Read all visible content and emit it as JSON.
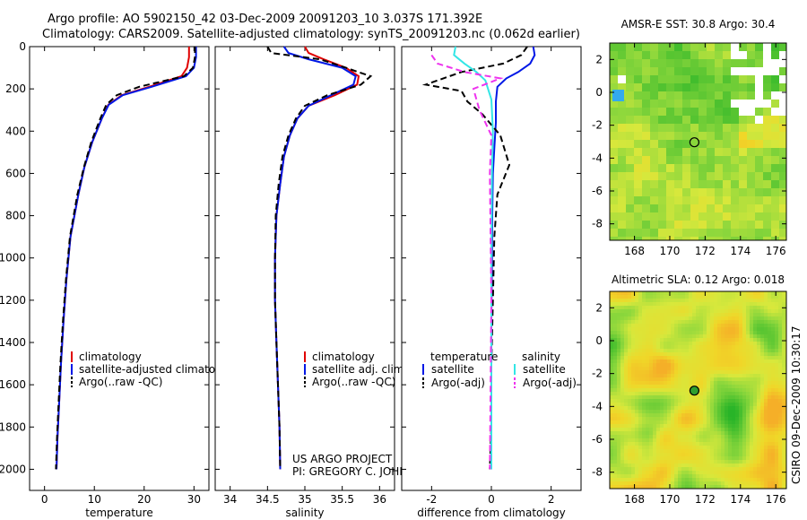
{
  "header": {
    "line1": "Argo profile: AO 5902150_42 03-Dec-2009 20091203_10 3.037S 171.392E",
    "line2": "Climatology: CARS2009. Satellite-adjusted climatology: synTS_20091203.nc (0.062d earlier)"
  },
  "side_label": "CSIRO 09-Dec-2009 10:30:17",
  "colors": {
    "red": "#e00000",
    "blue": "#0018e6",
    "black": "#000000",
    "cyan": "#33e6e6",
    "magenta": "#ee33ee",
    "circle_fill": "#2f9e2f"
  },
  "chart_data": [
    {
      "id": "temperature",
      "type": "line",
      "xlabel": "temperature",
      "ylabel": "",
      "xlim": [
        -3,
        33
      ],
      "ylim": [
        2100,
        0
      ],
      "xticks": [
        0,
        10,
        20,
        30
      ],
      "yticks": [
        0,
        200,
        400,
        600,
        800,
        1000,
        1200,
        1400,
        1600,
        1800,
        2000
      ],
      "series": [
        {
          "name": "climatology",
          "color": "#e00000",
          "dash": false,
          "x": [
            29.0,
            29.0,
            28.6,
            27.5,
            21.0,
            15.5,
            12.8,
            11.5,
            9.6,
            8.0,
            6.8,
            5.2,
            4.4,
            3.8,
            3.3,
            2.9,
            2.6,
            2.4
          ],
          "y": [
            0,
            50,
            100,
            140,
            190,
            230,
            275,
            340,
            450,
            570,
            700,
            900,
            1100,
            1300,
            1500,
            1700,
            1850,
            2000
          ]
        },
        {
          "name": "satellite-adjusted climatology",
          "color": "#0018e6",
          "dash": false,
          "x": [
            30.4,
            30.4,
            30.0,
            28.4,
            21.5,
            15.7,
            12.9,
            11.5,
            9.6,
            8.0,
            6.8,
            5.2,
            4.4,
            3.8,
            3.3,
            2.9,
            2.6,
            2.4
          ],
          "y": [
            0,
            50,
            100,
            140,
            190,
            230,
            275,
            340,
            450,
            570,
            700,
            900,
            1100,
            1300,
            1500,
            1700,
            1850,
            2000
          ]
        },
        {
          "name": "Argo(..raw -QC)",
          "color": "#000000",
          "dash": true,
          "x": [
            30.2,
            30.2,
            29.8,
            28.0,
            19.0,
            14.5,
            12.4,
            11.2,
            9.4,
            7.9,
            6.6,
            5.1,
            4.3,
            3.7,
            3.2,
            2.8,
            2.5,
            2.3
          ],
          "y": [
            0,
            50,
            100,
            140,
            190,
            230,
            275,
            340,
            450,
            570,
            700,
            900,
            1100,
            1300,
            1500,
            1700,
            1850,
            2000
          ]
        }
      ],
      "legend": [
        "climatology",
        "satellite-adjusted climatology",
        "Argo(..raw -QC)"
      ],
      "legend_position": "bottom-right"
    },
    {
      "id": "salinity",
      "type": "line",
      "xlabel": "salinity",
      "ylabel": "",
      "xlim": [
        33.8,
        36.2
      ],
      "ylim": [
        2100,
        0
      ],
      "xticks": [
        34,
        34.5,
        35,
        35.5,
        36
      ],
      "xticklabels": [
        "34",
        "34.5",
        "35",
        "35.5",
        "36"
      ],
      "yticks": [
        0,
        200,
        400,
        600,
        800,
        1000,
        1200,
        1400,
        1600,
        1800,
        2000
      ],
      "series": [
        {
          "name": "climatology",
          "color": "#e00000",
          "dash": false,
          "x": [
            35.0,
            35.05,
            35.25,
            35.55,
            35.72,
            35.7,
            35.4,
            35.05,
            34.9,
            34.8,
            34.72,
            34.67,
            34.62,
            34.6,
            34.6,
            34.62,
            34.64,
            34.66,
            34.67
          ],
          "y": [
            0,
            30,
            60,
            100,
            140,
            180,
            230,
            280,
            340,
            420,
            520,
            650,
            800,
            1000,
            1200,
            1400,
            1600,
            1800,
            2000
          ]
        },
        {
          "name": "satellite adj. clim.",
          "color": "#0018e6",
          "dash": false,
          "x": [
            34.72,
            34.78,
            35.05,
            35.5,
            35.68,
            35.65,
            35.35,
            35.05,
            34.9,
            34.8,
            34.72,
            34.67,
            34.62,
            34.6,
            34.6,
            34.62,
            34.64,
            34.66,
            34.67
          ],
          "y": [
            0,
            30,
            60,
            100,
            140,
            180,
            230,
            280,
            340,
            420,
            520,
            650,
            800,
            1000,
            1200,
            1400,
            1600,
            1800,
            2000
          ]
        },
        {
          "name": "Argo(..raw -QC)",
          "color": "#000000",
          "dash": true,
          "x": [
            34.5,
            34.55,
            35.2,
            35.55,
            35.88,
            35.75,
            35.3,
            35.0,
            34.88,
            34.78,
            34.7,
            34.65,
            34.61,
            34.6,
            34.6,
            34.62,
            34.64,
            34.66,
            34.67
          ],
          "y": [
            0,
            30,
            60,
            100,
            140,
            180,
            230,
            280,
            340,
            420,
            520,
            650,
            800,
            1000,
            1200,
            1400,
            1600,
            1800,
            2000
          ]
        }
      ],
      "legend": [
        "climatology",
        "satellite adj. clim.",
        "Argo(..raw -QC)"
      ],
      "legend_position": "bottom-right",
      "annotation": [
        "US ARGO PROJECT",
        "PI: GREGORY C. JOHNSON"
      ]
    },
    {
      "id": "difference",
      "type": "line",
      "xlabel": "difference from climatology",
      "ylabel": "",
      "xlim": [
        -3,
        3
      ],
      "ylim": [
        2100,
        0
      ],
      "xticks": [
        -2,
        0,
        2
      ],
      "yticks": [
        0,
        200,
        400,
        600,
        800,
        1000,
        1200,
        1400,
        1600,
        1800,
        2000
      ],
      "series": [
        {
          "name": "temperature satellite",
          "color": "#0018e6",
          "dash": false,
          "x": [
            1.4,
            1.45,
            1.3,
            0.9,
            0.5,
            0.2,
            0.15,
            0.15,
            0.1,
            0.05,
            0.03,
            0.02,
            0.0,
            0.0,
            0.0,
            0.0
          ],
          "y": [
            0,
            40,
            80,
            120,
            150,
            190,
            260,
            360,
            480,
            600,
            800,
            1000,
            1300,
            1600,
            1800,
            2000
          ]
        },
        {
          "name": "temperature Argo(-adj)",
          "color": "#000000",
          "dash": true,
          "x": [
            1.2,
            1.0,
            0.4,
            -1.0,
            -2.2,
            -1.0,
            -0.8,
            -0.3,
            0.3,
            0.6,
            0.2,
            0.1,
            0.05,
            0.0,
            0.0,
            -0.05
          ],
          "y": [
            0,
            40,
            80,
            120,
            180,
            210,
            260,
            320,
            420,
            560,
            700,
            900,
            1200,
            1500,
            1800,
            2000
          ]
        },
        {
          "name": "salinity satellite",
          "color": "#33e6e6",
          "dash": false,
          "x": [
            -1.2,
            -1.25,
            -0.9,
            -0.5,
            -0.2,
            0.0,
            0.05,
            0.02,
            0.0,
            0.0,
            0.0
          ],
          "y": [
            0,
            40,
            80,
            120,
            160,
            250,
            400,
            600,
            1000,
            1500,
            2000
          ]
        },
        {
          "name": "salinity Argo(-adj)",
          "color": "#ee33ee",
          "dash": true,
          "x": [
            -2.0,
            -1.8,
            -0.9,
            0.3,
            -0.6,
            -0.4,
            0.0,
            -0.05,
            0.0,
            -0.05
          ],
          "y": [
            40,
            80,
            120,
            150,
            200,
            300,
            420,
            600,
            1200,
            2000
          ]
        }
      ],
      "legend_headers": [
        "temperature",
        "salinity"
      ],
      "legend": [
        "satellite",
        "Argo(-adj)",
        "satellite",
        "Argo(-adj)"
      ],
      "legend_position": "bottom"
    },
    {
      "id": "sst_map",
      "type": "heatmap",
      "title": "AMSR-E SST: 30.8 Argo: 30.4",
      "xticks": [
        168,
        170,
        172,
        174,
        176
      ],
      "yticks": [
        2,
        0,
        -2,
        -4,
        -6,
        -8
      ],
      "xlim": [
        166.6,
        176.6
      ],
      "ylim": [
        -9,
        3
      ],
      "marker": {
        "lon": 171.392,
        "lat": -3.037
      }
    },
    {
      "id": "sla_map",
      "type": "heatmap",
      "title": "Altimetric SLA: 0.12 Argo: 0.018",
      "xticks": [
        168,
        170,
        172,
        174,
        176
      ],
      "yticks": [
        2,
        0,
        -2,
        -4,
        -6,
        -8
      ],
      "xlim": [
        166.6,
        176.6
      ],
      "ylim": [
        -9,
        3
      ],
      "marker": {
        "lon": 171.392,
        "lat": -3.037
      }
    }
  ]
}
